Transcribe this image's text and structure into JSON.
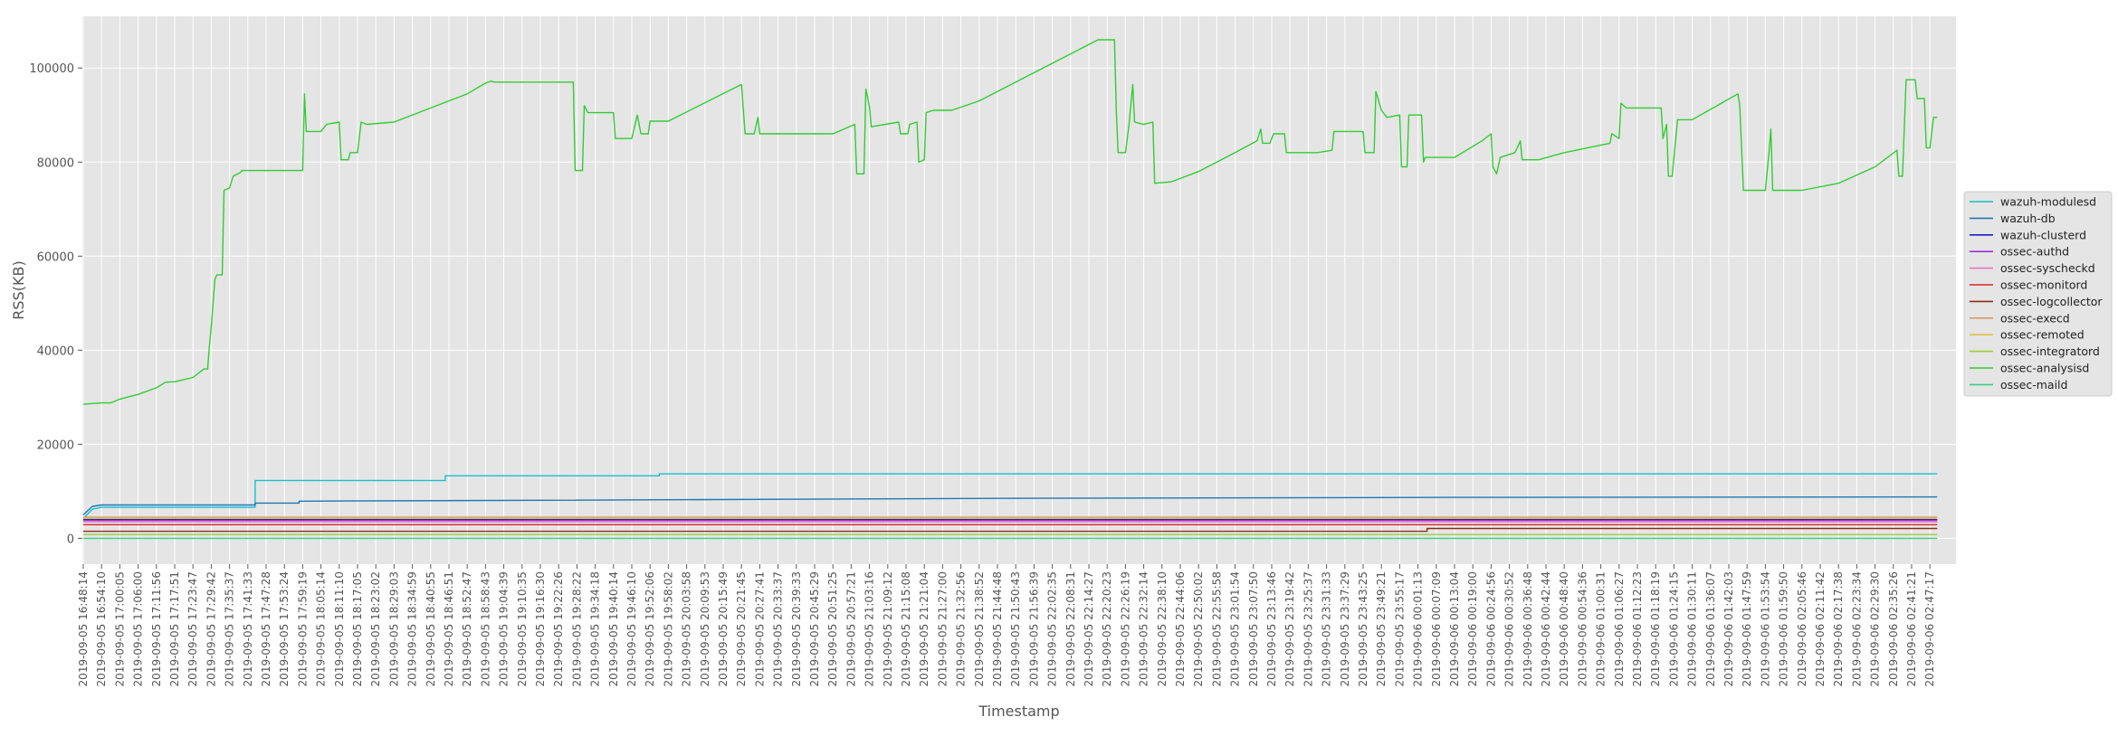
{
  "chart_data": {
    "type": "line",
    "title": "",
    "xlabel": "Timestamp",
    "ylabel": "RSS(KB)",
    "ylim": [
      -5500,
      111000
    ],
    "yticks": [
      0,
      20000,
      40000,
      60000,
      80000,
      100000
    ],
    "grid": true,
    "legend_position": "right",
    "x_ticks": [
      "2019-09-05 16:48:14",
      "2019-09-05 16:54:10",
      "2019-09-05 17:00:05",
      "2019-09-05 17:06:00",
      "2019-09-05 17:11:56",
      "2019-09-05 17:17:51",
      "2019-09-05 17:23:47",
      "2019-09-05 17:29:42",
      "2019-09-05 17:35:37",
      "2019-09-05 17:41:33",
      "2019-09-05 17:47:28",
      "2019-09-05 17:53:24",
      "2019-09-05 17:59:19",
      "2019-09-05 18:05:14",
      "2019-09-05 18:11:10",
      "2019-09-05 18:17:05",
      "2019-09-05 18:23:02",
      "2019-09-05 18:29:03",
      "2019-09-05 18:34:59",
      "2019-09-05 18:40:55",
      "2019-09-05 18:46:51",
      "2019-09-05 18:52:47",
      "2019-09-05 18:58:43",
      "2019-09-05 19:04:39",
      "2019-09-05 19:10:35",
      "2019-09-05 19:16:30",
      "2019-09-05 19:22:26",
      "2019-09-05 19:28:22",
      "2019-09-05 19:34:18",
      "2019-09-05 19:40:14",
      "2019-09-05 19:46:10",
      "2019-09-05 19:52:06",
      "2019-09-05 19:58:02",
      "2019-09-05 20:03:58",
      "2019-09-05 20:09:53",
      "2019-09-05 20:15:49",
      "2019-09-05 20:21:45",
      "2019-09-05 20:27:41",
      "2019-09-05 20:33:37",
      "2019-09-05 20:39:33",
      "2019-09-05 20:45:29",
      "2019-09-05 20:51:25",
      "2019-09-05 20:57:21",
      "2019-09-05 21:03:16",
      "2019-09-05 21:09:12",
      "2019-09-05 21:15:08",
      "2019-09-05 21:21:04",
      "2019-09-05 21:27:00",
      "2019-09-05 21:32:56",
      "2019-09-05 21:38:52",
      "2019-09-05 21:44:48",
      "2019-09-05 21:50:43",
      "2019-09-05 21:56:39",
      "2019-09-05 22:02:35",
      "2019-09-05 22:08:31",
      "2019-09-05 22:14:27",
      "2019-09-05 22:20:23",
      "2019-09-05 22:26:19",
      "2019-09-05 22:32:14",
      "2019-09-05 22:38:10",
      "2019-09-05 22:44:06",
      "2019-09-05 22:50:02",
      "2019-09-05 22:55:58",
      "2019-09-05 23:01:54",
      "2019-09-05 23:07:50",
      "2019-09-05 23:13:46",
      "2019-09-05 23:19:42",
      "2019-09-05 23:25:37",
      "2019-09-05 23:31:33",
      "2019-09-05 23:37:29",
      "2019-09-05 23:43:25",
      "2019-09-05 23:49:21",
      "2019-09-05 23:55:17",
      "2019-09-06 00:01:13",
      "2019-09-06 00:07:09",
      "2019-09-06 00:13:04",
      "2019-09-06 00:19:00",
      "2019-09-06 00:24:56",
      "2019-09-06 00:30:52",
      "2019-09-06 00:36:48",
      "2019-09-06 00:42:44",
      "2019-09-06 00:48:40",
      "2019-09-06 00:54:36",
      "2019-09-06 01:00:31",
      "2019-09-06 01:06:27",
      "2019-09-06 01:12:23",
      "2019-09-06 01:18:19",
      "2019-09-06 01:24:15",
      "2019-09-06 01:30:11",
      "2019-09-06 01:36:07",
      "2019-09-06 01:42:03",
      "2019-09-06 01:47:59",
      "2019-09-06 01:53:54",
      "2019-09-06 01:59:50",
      "2019-09-06 02:05:46",
      "2019-09-06 02:11:42",
      "2019-09-06 02:17:38",
      "2019-09-06 02:23:34",
      "2019-09-06 02:29:30",
      "2019-09-06 02:35:26",
      "2019-09-06 02:41:21",
      "2019-09-06 02:47:17"
    ],
    "series": [
      {
        "name": "wazuh-modulesd",
        "color": "#17becf",
        "points": [
          [
            0,
            4200
          ],
          [
            0.5,
            6200
          ],
          [
            1,
            6600
          ],
          [
            9.4,
            6600
          ],
          [
            9.4,
            12300
          ],
          [
            19.8,
            12300
          ],
          [
            19.8,
            13300
          ],
          [
            31.5,
            13300
          ],
          [
            31.5,
            13700
          ],
          [
            101.4,
            13700
          ]
        ]
      },
      {
        "name": "wazuh-db",
        "color": "#1f77b4",
        "points": [
          [
            0,
            5000
          ],
          [
            0.5,
            6800
          ],
          [
            1,
            7100
          ],
          [
            9.4,
            7100
          ],
          [
            9.4,
            7500
          ],
          [
            11.8,
            7500
          ],
          [
            11.8,
            7900
          ],
          [
            25,
            8100
          ],
          [
            50,
            8500
          ],
          [
            75,
            8700
          ],
          [
            101.4,
            8800
          ]
        ]
      },
      {
        "name": "wazuh-clusterd",
        "color": "#1f1fbf",
        "points": [
          [
            0,
            4000
          ],
          [
            101.4,
            4000
          ]
        ]
      },
      {
        "name": "ossec-authd",
        "color": "#9b30d9",
        "points": [
          [
            0,
            3800
          ],
          [
            101.4,
            3800
          ]
        ]
      },
      {
        "name": "ossec-syscheckd",
        "color": "#e377c2",
        "points": [
          [
            0,
            3500
          ],
          [
            101.4,
            3500
          ]
        ]
      },
      {
        "name": "ossec-monitord",
        "color": "#d62728",
        "points": [
          [
            0,
            2900
          ],
          [
            101.4,
            2900
          ]
        ]
      },
      {
        "name": "ossec-logcollector",
        "color": "#8c2d19",
        "points": [
          [
            0,
            1500
          ],
          [
            73.5,
            1500
          ],
          [
            73.5,
            2100
          ],
          [
            101.4,
            2100
          ]
        ]
      },
      {
        "name": "ossec-execd",
        "color": "#d99a6c",
        "points": [
          [
            0,
            4500
          ],
          [
            101.4,
            4500
          ]
        ]
      },
      {
        "name": "ossec-remoted",
        "color": "#e0c040",
        "points": [
          [
            0,
            4300
          ],
          [
            101.4,
            4300
          ]
        ]
      },
      {
        "name": "ossec-integratord",
        "color": "#9ccc3c",
        "points": [
          [
            0,
            800
          ],
          [
            101.4,
            800
          ]
        ]
      },
      {
        "name": "ossec-analysisd",
        "color": "#33cc33",
        "points": [
          [
            0,
            28500
          ],
          [
            1,
            28800
          ],
          [
            1.5,
            28800
          ],
          [
            2,
            29600
          ],
          [
            3,
            30600
          ],
          [
            4,
            32000
          ],
          [
            4.5,
            33200
          ],
          [
            5,
            33300
          ],
          [
            6,
            34200
          ],
          [
            6.4,
            35400
          ],
          [
            6.6,
            36000
          ],
          [
            6.8,
            36000
          ],
          [
            6.9,
            41000
          ],
          [
            7.0,
            45000
          ],
          [
            7.2,
            55000
          ],
          [
            7.3,
            56000
          ],
          [
            7.6,
            56000
          ],
          [
            7.7,
            74000
          ],
          [
            8.0,
            74500
          ],
          [
            8.2,
            77000
          ],
          [
            8.6,
            77800
          ],
          [
            8.7,
            78200
          ],
          [
            12,
            78200
          ],
          [
            12.1,
            94500
          ],
          [
            12.2,
            86500
          ],
          [
            13,
            86500
          ],
          [
            13.3,
            88000
          ],
          [
            14,
            88500
          ],
          [
            14.1,
            80500
          ],
          [
            14.5,
            80500
          ],
          [
            14.6,
            82000
          ],
          [
            15,
            82000
          ],
          [
            15.2,
            88500
          ],
          [
            15.5,
            88000
          ],
          [
            17,
            88500
          ],
          [
            19,
            91500
          ],
          [
            21,
            94500
          ],
          [
            22,
            96800
          ],
          [
            22.3,
            97200
          ],
          [
            22.5,
            97000
          ],
          [
            26,
            97000
          ],
          [
            26.8,
            97000
          ],
          [
            26.9,
            78200
          ],
          [
            27.3,
            78200
          ],
          [
            27.4,
            92000
          ],
          [
            27.6,
            90500
          ],
          [
            29,
            90500
          ],
          [
            29.1,
            85000
          ],
          [
            30,
            85000
          ],
          [
            30.3,
            90000
          ],
          [
            30.5,
            86000
          ],
          [
            30.9,
            86000
          ],
          [
            31,
            88700
          ],
          [
            32,
            88700
          ],
          [
            36,
            96500
          ],
          [
            36.2,
            86000
          ],
          [
            36.7,
            86000
          ],
          [
            36.9,
            89500
          ],
          [
            37,
            86000
          ],
          [
            41,
            86000
          ],
          [
            42.2,
            88000
          ],
          [
            42.3,
            77500
          ],
          [
            42.7,
            77500
          ],
          [
            42.8,
            95500
          ],
          [
            43,
            91800
          ],
          [
            43.1,
            87500
          ],
          [
            44.6,
            88500
          ],
          [
            44.7,
            86000
          ],
          [
            45.1,
            86000
          ],
          [
            45.2,
            88000
          ],
          [
            45.6,
            88500
          ],
          [
            45.7,
            80000
          ],
          [
            46,
            80500
          ],
          [
            46.1,
            90500
          ],
          [
            46.5,
            91000
          ],
          [
            47.5,
            91000
          ],
          [
            49,
            93000
          ],
          [
            52,
            99000
          ],
          [
            54,
            103000
          ],
          [
            55.5,
            106000
          ],
          [
            56.4,
            106000
          ],
          [
            56.5,
            91000
          ],
          [
            56.6,
            82000
          ],
          [
            57,
            82000
          ],
          [
            57.2,
            88000
          ],
          [
            57.4,
            96500
          ],
          [
            57.5,
            88500
          ],
          [
            58,
            88000
          ],
          [
            58.5,
            88500
          ],
          [
            58.6,
            75500
          ],
          [
            59.5,
            75800
          ],
          [
            61,
            78000
          ],
          [
            63,
            82000
          ],
          [
            64.2,
            84500
          ],
          [
            64.4,
            87000
          ],
          [
            64.5,
            84000
          ],
          [
            64.9,
            84000
          ],
          [
            65.1,
            86000
          ],
          [
            65.7,
            86000
          ],
          [
            65.8,
            82000
          ],
          [
            67.5,
            82000
          ],
          [
            68.3,
            82500
          ],
          [
            68.4,
            86500
          ],
          [
            70,
            86500
          ],
          [
            70.1,
            82000
          ],
          [
            70.6,
            82000
          ],
          [
            70.7,
            95000
          ],
          [
            71,
            91000
          ],
          [
            71.3,
            89500
          ],
          [
            72,
            90000
          ],
          [
            72.1,
            79000
          ],
          [
            72.4,
            79000
          ],
          [
            72.5,
            90000
          ],
          [
            73.2,
            90000
          ],
          [
            73.3,
            80000
          ],
          [
            73.4,
            81000
          ],
          [
            75,
            81000
          ],
          [
            76.5,
            84500
          ],
          [
            77,
            86000
          ],
          [
            77.1,
            79000
          ],
          [
            77.3,
            77500
          ],
          [
            77.5,
            81000
          ],
          [
            78.3,
            82000
          ],
          [
            78.6,
            84500
          ],
          [
            78.7,
            80500
          ],
          [
            79.6,
            80500
          ],
          [
            81,
            82000
          ],
          [
            83.5,
            84000
          ],
          [
            83.6,
            86000
          ],
          [
            84,
            85000
          ],
          [
            84.1,
            92500
          ],
          [
            84.4,
            91500
          ],
          [
            86.3,
            91500
          ],
          [
            86.4,
            85000
          ],
          [
            86.6,
            88000
          ],
          [
            86.7,
            77000
          ],
          [
            86.9,
            77000
          ],
          [
            87.2,
            89000
          ],
          [
            88,
            89000
          ],
          [
            90.5,
            94500
          ],
          [
            90.6,
            92000
          ],
          [
            90.8,
            74000
          ],
          [
            92,
            74000
          ],
          [
            92.2,
            82000
          ],
          [
            92.3,
            87000
          ],
          [
            92.4,
            74000
          ],
          [
            94,
            74000
          ],
          [
            96,
            75500
          ],
          [
            98,
            79000
          ],
          [
            99.2,
            82500
          ],
          [
            99.3,
            77000
          ],
          [
            99.5,
            77000
          ],
          [
            99.7,
            97500
          ],
          [
            100.2,
            97500
          ],
          [
            100.3,
            93500
          ],
          [
            100.7,
            93500
          ],
          [
            100.8,
            83000
          ],
          [
            101,
            83000
          ],
          [
            101.2,
            89500
          ],
          [
            101.4,
            89500
          ]
        ]
      },
      {
        "name": "ossec-maild",
        "color": "#3ec98c",
        "points": [
          [
            0,
            0
          ],
          [
            101.4,
            0
          ]
        ]
      }
    ]
  }
}
